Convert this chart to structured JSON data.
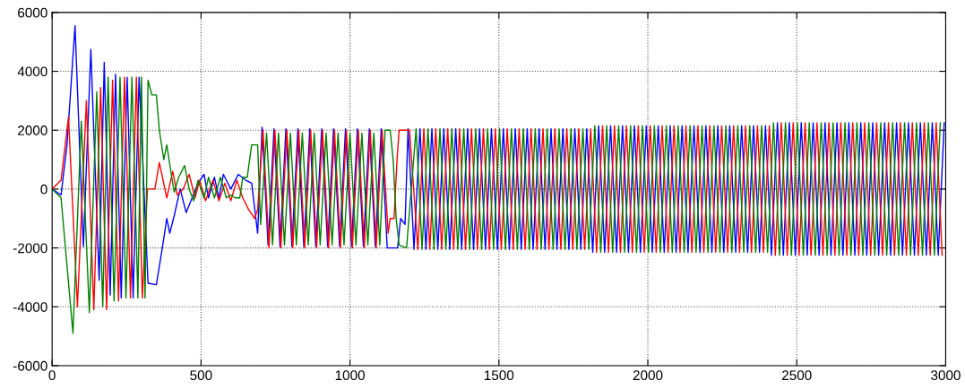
{
  "chart_data": {
    "type": "line",
    "xlim": [
      0,
      3000
    ],
    "xticks": [
      0,
      500,
      1000,
      1500,
      2000,
      2500,
      3000
    ],
    "ylim": [
      -6000,
      6000
    ],
    "yticks": [
      -6000,
      -4000,
      -2000,
      0,
      2000,
      4000,
      6000
    ],
    "grid": true,
    "series": [
      {
        "color": "#0000ff",
        "x": [
          0,
          30,
          50,
          77,
          105,
          130,
          158,
          175,
          195,
          213,
          232,
          252,
          272,
          292,
          322,
          350,
          370,
          385,
          395,
          410,
          430,
          450,
          470,
          490,
          510,
          525,
          545,
          560,
          575,
          600,
          625,
          650,
          670,
          690,
          705,
          725,
          745,
          765,
          785,
          805,
          825,
          845,
          865,
          885,
          905,
          925,
          945,
          965,
          985,
          1005,
          1025,
          1045,
          1065,
          1085,
          1105,
          1125,
          1135,
          1160,
          1170,
          1185,
          1195,
          1215,
          1235,
          1255,
          1275,
          1295,
          1315,
          1335,
          1355,
          1375,
          1395,
          1415,
          1435,
          1455,
          1475,
          1495,
          1515,
          1535,
          1555,
          1575,
          1595,
          1615,
          1635,
          1655,
          1675,
          1695,
          1715,
          1735,
          1755,
          1775,
          1795,
          1815,
          1835,
          1855,
          1875,
          1895,
          1915,
          1935,
          1955,
          1975,
          1995,
          2015,
          2035,
          2055,
          2075,
          2095,
          2115,
          2135,
          2155,
          2175,
          2195,
          2215,
          2235,
          2255,
          2275,
          2295,
          2315,
          2335,
          2355,
          2375,
          2395,
          2415,
          2435,
          2455,
          2475,
          2495,
          2515,
          2535,
          2555,
          2575,
          2595,
          2615,
          2635,
          2655,
          2675,
          2695,
          2715,
          2735,
          2755,
          2775,
          2795,
          2815,
          2835,
          2855,
          2875,
          2895,
          2915,
          2935,
          2955,
          2975,
          2995
        ],
        "values": [
          0,
          -200,
          1500,
          5550,
          -1950,
          4750,
          -3100,
          4300,
          -3600,
          3900,
          -3700,
          3800,
          -3700,
          3800,
          -3200,
          -3250,
          -2000,
          -1000,
          -1500,
          -900,
          0,
          -800,
          -300,
          200,
          500,
          -300,
          400,
          -300,
          500,
          0,
          500,
          300,
          200,
          -1500,
          2100,
          -1900,
          2050,
          -1950,
          2050,
          -1950,
          2050,
          -1950,
          2050,
          -1950,
          2050,
          -1950,
          2050,
          -1950,
          2050,
          -1950,
          2050,
          -1950,
          2050,
          -1950,
          2050,
          -2000,
          -2000,
          -2000,
          -1000,
          -1200,
          2050,
          -2050,
          2050,
          -2050,
          2050,
          -2050,
          2050,
          -2050,
          2050,
          -2050,
          2050,
          -2050,
          2050,
          -2050,
          2050,
          -2050,
          2050,
          -2050,
          2050,
          -2050,
          2050,
          -2050,
          2050,
          -2050,
          2050,
          -2050,
          2050,
          -2050,
          2050,
          -2050,
          2050,
          -2150,
          2150,
          -2150,
          2150,
          -2150,
          2150,
          -2150,
          2150,
          -2150,
          2150,
          -2150,
          2150,
          -2150,
          2150,
          -2150,
          2150,
          -2150,
          2150,
          -2150,
          2150,
          -2150,
          2150,
          -2150,
          2150,
          -2150,
          2150,
          -2150,
          2150,
          -2150,
          2150,
          -2250,
          2250,
          -2250,
          2250,
          -2250,
          2250,
          -2250,
          2250,
          -2250,
          2250,
          -2250,
          2250,
          -2250,
          2250,
          -2250,
          2250,
          -2250,
          2250,
          -2250,
          2250,
          -2250,
          2250,
          -2250,
          2250,
          -2250,
          2250,
          -2250,
          2250,
          -2250,
          2250
        ]
      },
      {
        "color": "#ff0000",
        "x": [
          0,
          30,
          55,
          85,
          115,
          140,
          163,
          183,
          203,
          223,
          243,
          263,
          283,
          303,
          320,
          345,
          360,
          385,
          405,
          420,
          440,
          460,
          480,
          495,
          515,
          540,
          560,
          580,
          600,
          620,
          640,
          660,
          680,
          690,
          708,
          728,
          748,
          768,
          788,
          808,
          828,
          848,
          868,
          888,
          908,
          928,
          948,
          968,
          988,
          1008,
          1028,
          1048,
          1068,
          1088,
          1108,
          1128,
          1135,
          1148,
          1158,
          1165,
          1200,
          1228,
          1248,
          1268,
          1288,
          1308,
          1328,
          1348,
          1368,
          1388,
          1408,
          1428,
          1448,
          1468,
          1488,
          1508,
          1528,
          1548,
          1568,
          1588,
          1608,
          1628,
          1648,
          1668,
          1688,
          1708,
          1728,
          1748,
          1768,
          1788,
          1808,
          1828,
          1848,
          1868,
          1888,
          1908,
          1928,
          1948,
          1968,
          1988,
          2008,
          2028,
          2048,
          2068,
          2088,
          2108,
          2128,
          2148,
          2168,
          2188,
          2208,
          2228,
          2248,
          2268,
          2288,
          2308,
          2328,
          2348,
          2368,
          2388,
          2408,
          2428,
          2448,
          2468,
          2488,
          2508,
          2528,
          2548,
          2568,
          2588,
          2608,
          2628,
          2648,
          2668,
          2688,
          2708,
          2728,
          2748,
          2768,
          2788,
          2808,
          2828,
          2848,
          2868,
          2888,
          2908,
          2928,
          2948,
          2968,
          2988
        ],
        "values": [
          0,
          300,
          2450,
          -4000,
          3000,
          -4100,
          3450,
          -4100,
          3700,
          -3800,
          3800,
          -3700,
          3800,
          -3700,
          0,
          0,
          900,
          -300,
          600,
          -200,
          0,
          500,
          -300,
          300,
          -400,
          300,
          -400,
          200,
          -400,
          300,
          -300,
          -700,
          -1000,
          -700,
          2000,
          -2000,
          2000,
          -2000,
          2000,
          -2000,
          2000,
          -2000,
          2000,
          -2000,
          2000,
          -2000,
          2000,
          -2000,
          2000,
          -2000,
          2000,
          -2000,
          2000,
          -2000,
          2000,
          -1500,
          -1000,
          -1000,
          1000,
          2000,
          2000,
          -2050,
          2050,
          -2050,
          2050,
          -2050,
          2050,
          -2050,
          2050,
          -2050,
          2050,
          -2050,
          2050,
          -2050,
          2050,
          -2050,
          2050,
          -2050,
          2050,
          -2050,
          2050,
          -2050,
          2050,
          -2050,
          2050,
          -2050,
          2050,
          -2050,
          2050,
          -2050,
          2050,
          -2150,
          2150,
          -2150,
          2150,
          -2150,
          2150,
          -2150,
          2150,
          -2150,
          2150,
          -2150,
          2150,
          -2150,
          2150,
          -2150,
          2150,
          -2150,
          2150,
          -2150,
          2150,
          -2150,
          2150,
          -2150,
          2150,
          -2150,
          2150,
          -2150,
          2150,
          -2150,
          2150,
          -2250,
          2250,
          -2250,
          2250,
          -2250,
          2250,
          -2250,
          2250,
          -2250,
          2250,
          -2250,
          2250,
          -2250,
          2250,
          -2250,
          2250,
          -2250,
          2250,
          -2250,
          2250,
          -2250,
          2250,
          -2250,
          2250,
          -2250,
          2250,
          -2250,
          2250,
          -2250
        ]
      },
      {
        "color": "#008000",
        "x": [
          0,
          30,
          70,
          98,
          125,
          150,
          170,
          188,
          208,
          228,
          248,
          268,
          288,
          300,
          312,
          322,
          335,
          350,
          360,
          375,
          385,
          400,
          410,
          425,
          445,
          460,
          475,
          490,
          510,
          525,
          545,
          565,
          585,
          600,
          615,
          630,
          640,
          655,
          670,
          690,
          700,
          720,
          740,
          760,
          780,
          800,
          820,
          840,
          860,
          880,
          900,
          920,
          940,
          960,
          980,
          1000,
          1020,
          1040,
          1060,
          1080,
          1100,
          1118,
          1135,
          1145,
          1155,
          1165,
          1190,
          1222,
          1242,
          1262,
          1282,
          1302,
          1322,
          1342,
          1362,
          1382,
          1402,
          1422,
          1442,
          1462,
          1482,
          1502,
          1522,
          1542,
          1562,
          1582,
          1602,
          1622,
          1642,
          1662,
          1682,
          1702,
          1722,
          1742,
          1762,
          1782,
          1802,
          1822,
          1842,
          1862,
          1882,
          1902,
          1922,
          1942,
          1962,
          1982,
          2002,
          2022,
          2042,
          2062,
          2082,
          2102,
          2122,
          2142,
          2162,
          2182,
          2202,
          2222,
          2242,
          2262,
          2282,
          2302,
          2322,
          2342,
          2362,
          2382,
          2402,
          2422,
          2442,
          2462,
          2482,
          2502,
          2522,
          2542,
          2562,
          2582,
          2602,
          2622,
          2642,
          2662,
          2682,
          2702,
          2722,
          2742,
          2762,
          2782,
          2802,
          2822,
          2842,
          2862,
          2882,
          2902,
          2922,
          2942,
          2962,
          2982
        ],
        "values": [
          0,
          -300,
          -4900,
          2300,
          -4200,
          3300,
          -4000,
          3800,
          -3800,
          3800,
          -3700,
          3800,
          -3700,
          3800,
          -3700,
          3700,
          3200,
          3200,
          2000,
          1000,
          1500,
          500,
          -100,
          400,
          800,
          0,
          -400,
          300,
          -300,
          400,
          -300,
          400,
          -300,
          -200,
          -300,
          -300,
          400,
          400,
          1500,
          1500,
          -1200,
          1900,
          -1900,
          1900,
          -1900,
          1900,
          -1900,
          1900,
          -1900,
          1900,
          -1900,
          1900,
          -1900,
          1900,
          -1900,
          1900,
          -1900,
          1900,
          -1900,
          1900,
          -1900,
          2000,
          2000,
          1000,
          -1000,
          -1900,
          -2000,
          2050,
          -2050,
          2050,
          -2050,
          2050,
          -2050,
          2050,
          -2050,
          2050,
          -2050,
          2050,
          -2050,
          2050,
          -2050,
          2050,
          -2050,
          2050,
          -2050,
          2050,
          -2050,
          2050,
          -2050,
          2050,
          -2050,
          2050,
          -2050,
          2050,
          -2050,
          2050,
          -2050,
          2150,
          -2150,
          2150,
          -2150,
          2150,
          -2150,
          2150,
          -2150,
          2150,
          -2150,
          2150,
          -2150,
          2150,
          -2150,
          2150,
          -2150,
          2150,
          -2150,
          2150,
          -2150,
          2150,
          -2150,
          2150,
          -2150,
          2150,
          -2150,
          2150,
          -2150,
          2150,
          -2150,
          2250,
          -2250,
          2250,
          -2250,
          2250,
          -2250,
          2250,
          -2250,
          2250,
          -2250,
          2250,
          -2250,
          2250,
          -2250,
          2250,
          -2250,
          2250,
          -2250,
          2250,
          -2250,
          2250,
          -2250,
          2250,
          -2250,
          2250,
          -2250,
          2250,
          -2250,
          2250
        ]
      }
    ]
  }
}
